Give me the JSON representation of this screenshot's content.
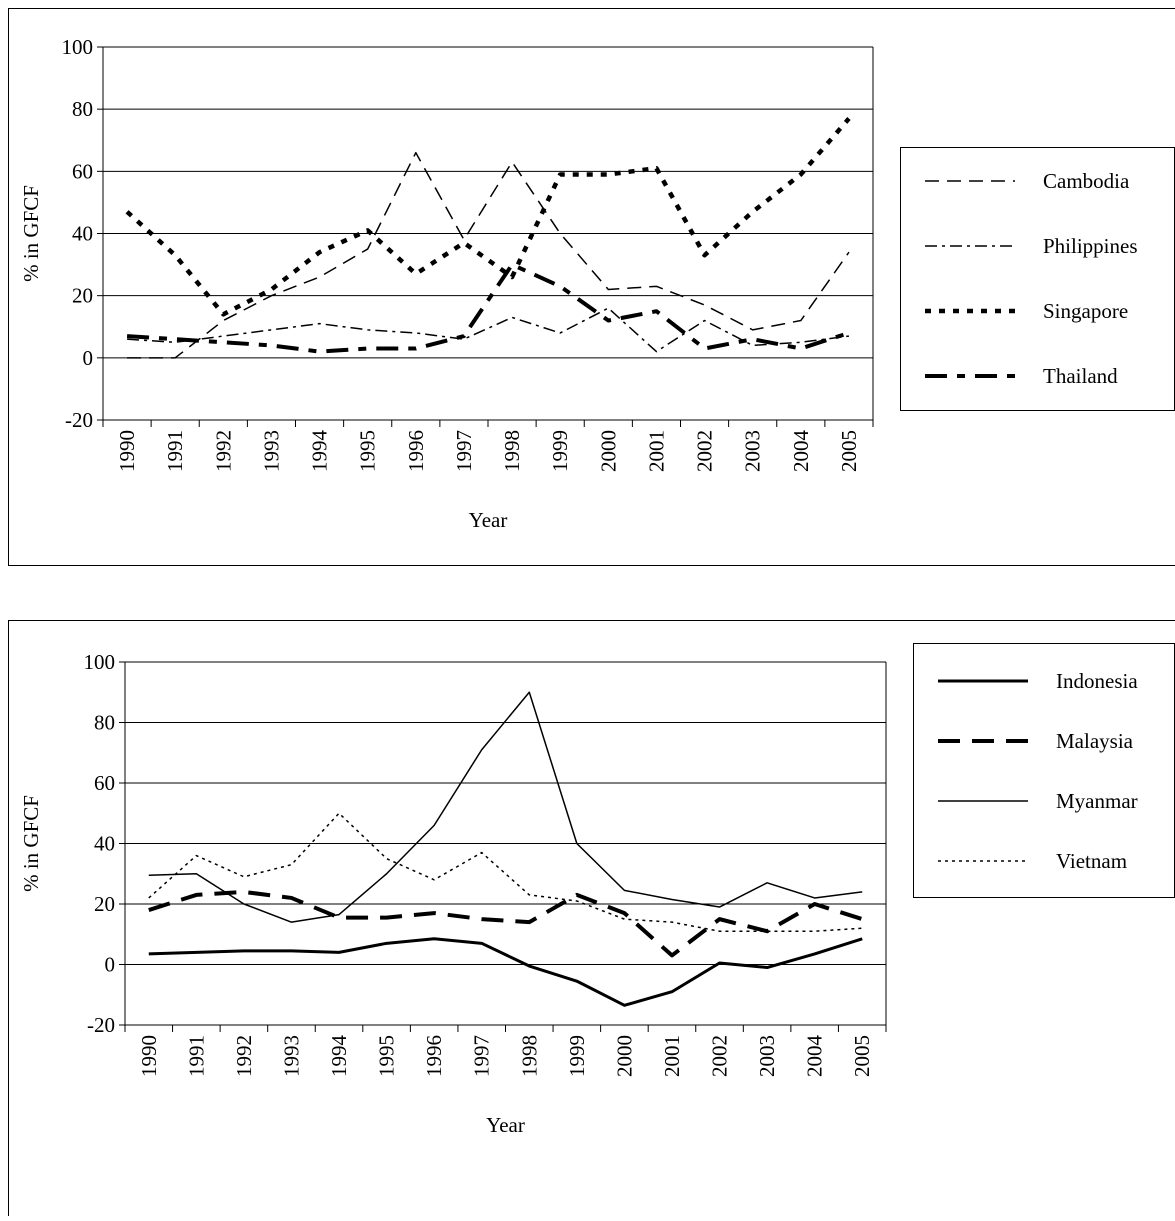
{
  "chart_data": [
    {
      "type": "line",
      "y_label": "% in GFCF",
      "x_label": "Year",
      "categories": [
        "1990",
        "1991",
        "1992",
        "1993",
        "1994",
        "1995",
        "1996",
        "1997",
        "1998",
        "1999",
        "2000",
        "2001",
        "2002",
        "2003",
        "2004",
        "2005"
      ],
      "series": [
        {
          "name": "Cambodia",
          "color": "#000000",
          "dash": "14 8",
          "width": 1.5,
          "values": [
            0,
            0,
            12,
            20,
            26,
            35,
            66,
            38,
            63,
            40,
            22,
            23,
            17,
            9,
            12,
            34
          ]
        },
        {
          "name": "Philippines",
          "color": "#000000",
          "dash": "12 5 3 5",
          "width": 1.5,
          "values": [
            6,
            5,
            7,
            9,
            11,
            9,
            8,
            6,
            13,
            8,
            16,
            2,
            12,
            4,
            5,
            7
          ]
        },
        {
          "name": "Singapore",
          "color": "#000000",
          "dash": "6 8",
          "width": 4.5,
          "values": [
            47,
            33,
            14,
            22,
            34,
            41,
            27,
            37,
            26,
            59,
            59,
            61,
            33,
            47,
            59,
            77
          ]
        },
        {
          "name": "Thailand",
          "color": "#000000",
          "dash": "22 10 8 10",
          "width": 4,
          "values": [
            7,
            6,
            5,
            4,
            2,
            3,
            3,
            7,
            30,
            23,
            12,
            15,
            3,
            6,
            3,
            8
          ]
        }
      ],
      "ylim": [
        -20,
        100
      ],
      "yticks": [
        -20,
        0,
        20,
        40,
        60,
        80,
        100
      ],
      "grid": true,
      "legend": "right"
    },
    {
      "type": "line",
      "y_label": "% in GFCF",
      "x_label": "Year",
      "categories": [
        "1990",
        "1991",
        "1992",
        "1993",
        "1994",
        "1995",
        "1996",
        "1997",
        "1998",
        "1999",
        "2000",
        "2001",
        "2002",
        "2003",
        "2004",
        "2005"
      ],
      "series": [
        {
          "name": "Indonesia",
          "color": "#000000",
          "dash": "none",
          "width": 3,
          "values": [
            3.5,
            4,
            4.5,
            4.5,
            4,
            7,
            8.5,
            7,
            -0.5,
            -5.5,
            -13.5,
            -9,
            0.5,
            -1,
            3.5,
            8.5
          ]
        },
        {
          "name": "Malaysia",
          "color": "#000000",
          "dash": "22 12",
          "width": 4,
          "values": [
            18,
            23,
            24,
            22,
            15.5,
            15.5,
            17,
            15,
            14,
            23,
            17,
            3,
            15,
            11,
            20,
            15
          ]
        },
        {
          "name": "Myanmar",
          "color": "#000000",
          "dash": "none",
          "width": 1.5,
          "values": [
            29.5,
            30,
            20,
            14,
            16.5,
            30,
            46,
            71,
            90,
            40,
            24.5,
            21.5,
            19,
            27,
            22,
            24
          ]
        },
        {
          "name": "Vietnam",
          "color": "#000000",
          "dash": "3 4",
          "width": 1.5,
          "values": [
            22,
            36,
            29,
            33,
            50,
            35,
            28,
            37,
            23,
            21,
            15,
            14,
            11,
            11,
            11,
            12
          ]
        }
      ],
      "ylim": [
        -20,
        100
      ],
      "yticks": [
        -20,
        0,
        20,
        40,
        60,
        80,
        100
      ],
      "grid": true,
      "legend": "right"
    }
  ]
}
